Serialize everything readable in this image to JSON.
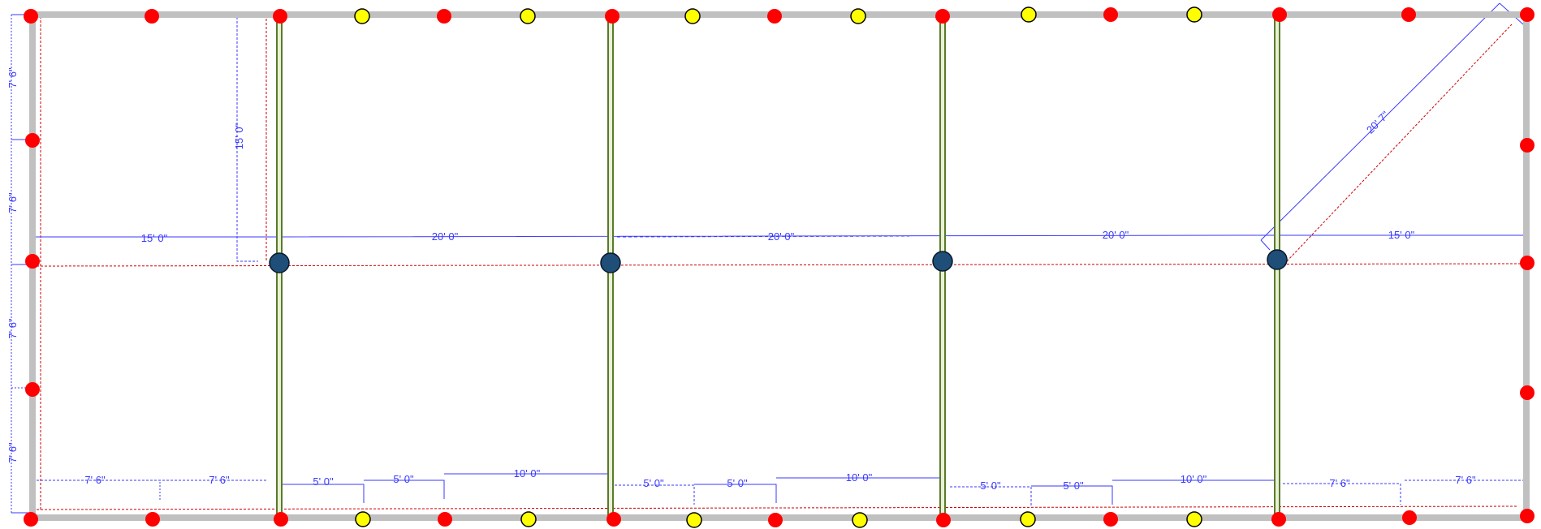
{
  "plan": {
    "colors": {
      "wall": "#c0c0c0",
      "beam_outer": "#5a7a2a",
      "beam_inner": "#e8f0d8",
      "perimeter_post": "#ff0000",
      "intermediate_post": "#ffff00",
      "center_post": "#1f4e79",
      "dimension_line": "#3a3aff",
      "reference_line": "#cc0000"
    },
    "dimensions": {
      "left_side": [
        "7' 6\"",
        "7' 6\"",
        "7' 6\"",
        "7' 6\""
      ],
      "top_left_vertical": "15' 0\"",
      "ridge": [
        "15' 0\"",
        "20' 0\"",
        "20' 0\"",
        "20' 0\"",
        "15' 0\""
      ],
      "diagonal": "20' 7\"",
      "bottom": [
        "7' 6\"",
        "7' 6\"",
        "5' 0\"",
        "5' 0\"",
        "10' 0\"",
        "5' 0\"",
        "5' 0\"",
        "10' 0\"",
        "5' 0\"",
        "5' 0\"",
        "10' 0\"",
        "7' 6\"",
        "7' 6\""
      ]
    }
  }
}
